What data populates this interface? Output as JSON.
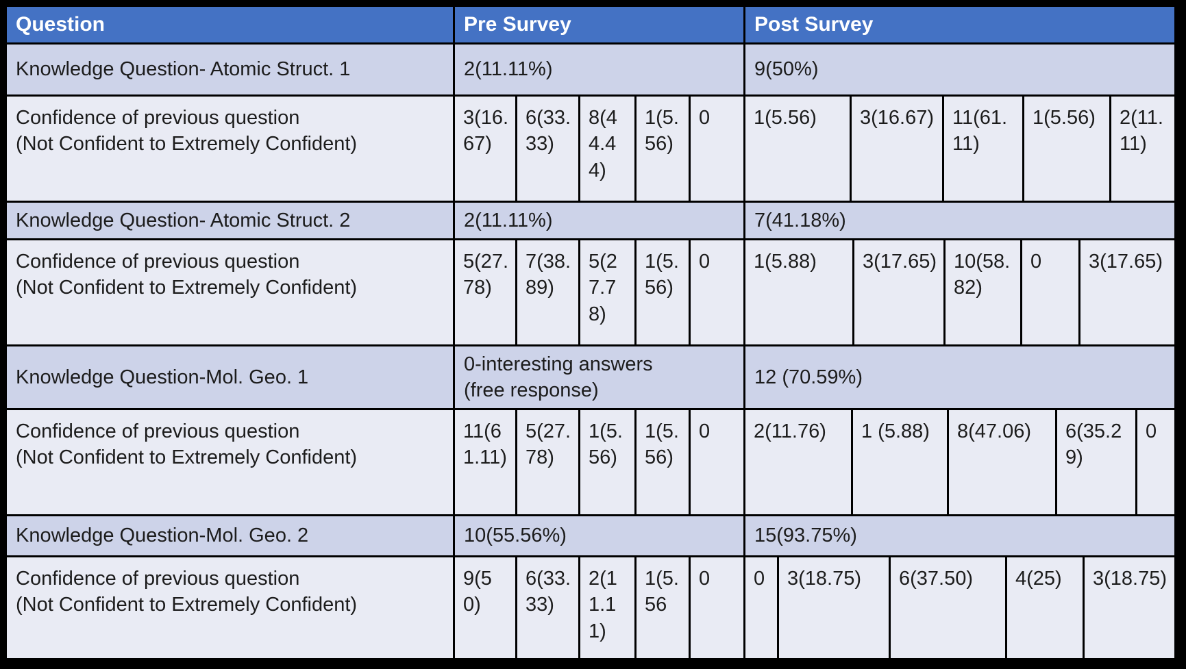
{
  "colors": {
    "header_bg": "#4472C4",
    "header_text": "#FFFFFF",
    "band_knowledge": "#CDD3E9",
    "band_confidence": "#E9EBF4",
    "body_text": "#1C1C1C",
    "gridline": "#FFFFFF",
    "frame": "#000000"
  },
  "chart_data": {
    "type": "table",
    "columns": [
      "Question",
      "Pre Survey",
      "Post Survey"
    ],
    "rows": [
      {
        "question": "Knowledge Question- Atomic Struct. 1",
        "pre": "2(11.11%)",
        "post": "9(50%)"
      },
      {
        "question": "Confidence of previous question\n(Not Confident to Extremely Confident)",
        "pre": [
          "3(16.67)",
          "6(33.33)",
          "8(44.44)",
          "1(5.56)",
          "0"
        ],
        "post": [
          "1(5.56)",
          "3(16.67)",
          "11(61.11)",
          "1(5.56)",
          "2(11.11)"
        ]
      },
      {
        "question": "Knowledge Question- Atomic Struct. 2",
        "pre": "2(11.11%)",
        "post": "7(41.18%)"
      },
      {
        "question": "Confidence of previous question\n(Not Confident to Extremely Confident)",
        "pre": [
          "5(27.78)",
          "7(38.89)",
          "5(27.78)",
          "1(5.56)",
          "0"
        ],
        "post": [
          "1(5.88)",
          "3(17.65)",
          "10(58.82)",
          "0",
          "3(17.65)"
        ]
      },
      {
        "question": "Knowledge Question-Mol. Geo. 1",
        "pre": "0-interesting answers\n(free response)",
        "post": "12 (70.59%)"
      },
      {
        "question": "Confidence of previous question\n(Not Confident to Extremely Confident)",
        "pre": [
          "11(61.11)",
          "5(27.78)",
          "1(5.56)",
          "1(5.56)",
          "0"
        ],
        "post": [
          "2(11.76)",
          "1 (5.88)",
          "8(47.06)",
          "6(35.29)",
          "0"
        ]
      },
      {
        "question": "Knowledge Question-Mol. Geo. 2",
        "pre": "10(55.56%)",
        "post": "15(93.75%)"
      },
      {
        "question": "Confidence of previous question\n(Not Confident to Extremely Confident)",
        "pre": [
          "9(50)",
          "6(33.33)",
          "2(11.11)",
          "1(5.56",
          "0"
        ],
        "post": [
          "0",
          "3(18.75)",
          "6(37.50)",
          "4(25)",
          "3(18.75)"
        ]
      }
    ]
  }
}
